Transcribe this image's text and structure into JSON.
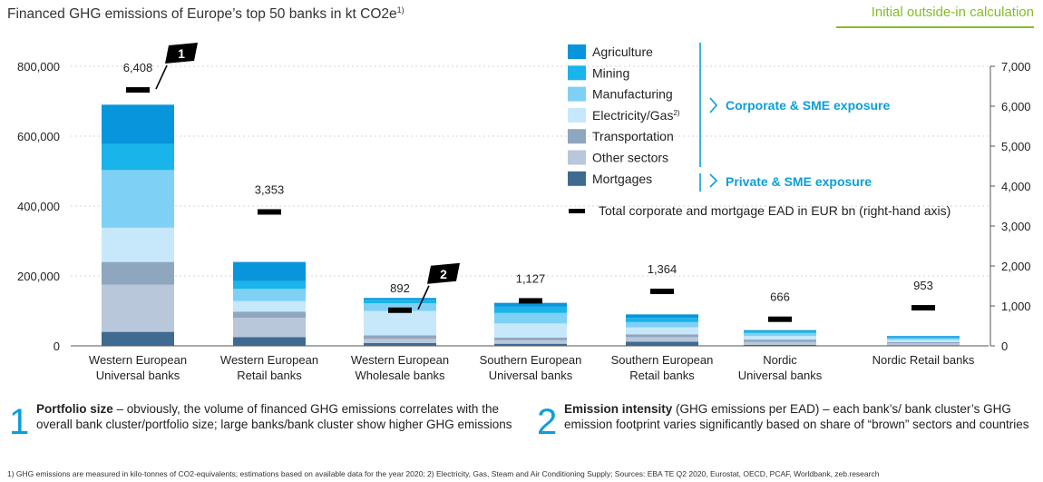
{
  "title": "Financed GHG emissions of Europe’s top 50 banks in kt CO2e",
  "title_sup": "1)",
  "badge": "Initial outside-in calculation",
  "chart_data": {
    "type": "bar",
    "stacked": true,
    "categories": [
      [
        "Western European",
        "Universal banks"
      ],
      [
        "Western European",
        "Retail banks"
      ],
      [
        "Western European",
        "Wholesale banks"
      ],
      [
        "Southern European",
        "Universal banks"
      ],
      [
        "Southern European",
        "Retail banks"
      ],
      [
        "Nordic",
        "Universal banks"
      ],
      [
        "Nordic Retail banks"
      ]
    ],
    "series": [
      {
        "name": "Mortgages",
        "color": "#3f6a92",
        "values": [
          40000,
          25000,
          8000,
          6000,
          12000,
          3000,
          2000
        ]
      },
      {
        "name": "Other sectors",
        "color": "#b8c7da",
        "values": [
          135000,
          55000,
          12000,
          10000,
          13000,
          8000,
          5000
        ]
      },
      {
        "name": "Transportation",
        "color": "#8fa6bf",
        "values": [
          65000,
          18000,
          10000,
          8000,
          8000,
          7000,
          4000
        ]
      },
      {
        "name": "Electricity/Gas",
        "sup": "2)",
        "color": "#c7e8fb",
        "values": [
          98000,
          30000,
          70000,
          40000,
          20000,
          10000,
          6000
        ]
      },
      {
        "name": "Manufacturing",
        "color": "#7fd0f5",
        "values": [
          165000,
          35000,
          22000,
          30000,
          15000,
          9000,
          5000
        ]
      },
      {
        "name": "Mining",
        "color": "#18b4ea",
        "values": [
          75000,
          22000,
          10000,
          18000,
          12000,
          5000,
          4000
        ]
      },
      {
        "name": "Agriculture",
        "color": "#0795dc",
        "values": [
          112000,
          55000,
          5000,
          11000,
          10000,
          3000,
          2000
        ]
      }
    ],
    "ead": {
      "name": "Total corporate and mortgage EAD in EUR bn (right-hand axis)",
      "values": [
        6408,
        3353,
        892,
        1127,
        1364,
        666,
        953
      ],
      "labels": [
        "6,408",
        "3,353",
        "892",
        "1,127",
        "1,364",
        "666",
        "953"
      ]
    },
    "ylim_left": [
      0,
      800000
    ],
    "yticks_left": [
      "0",
      "200,000",
      "400,000",
      "600,000",
      "800,000"
    ],
    "ylim_right": [
      0,
      7000
    ],
    "yticks_right": [
      "0",
      "1,000",
      "2,000",
      "3,000",
      "4,000",
      "5,000",
      "6,000",
      "7,000"
    ],
    "grid": true,
    "legend_position": "top-right",
    "groups": {
      "corporate": "Corporate & SME exposure",
      "private": "Private & SME exposure"
    },
    "flags": [
      {
        "num": "1",
        "bar": 0
      },
      {
        "num": "2",
        "bar": 2
      }
    ]
  },
  "callouts": [
    {
      "num": "1",
      "bold": "Portfolio size",
      "text": " – obviously, the volume of financed GHG emissions correlates with the overall bank cluster/portfolio size; large banks/bank cluster show higher GHG emissions"
    },
    {
      "num": "2",
      "bold": "Emission intensity",
      "text": " (GHG emissions per EAD) – each bank’s/ bank cluster’s GHG emission footprint varies significantly based on share of “brown” sectors and countries"
    }
  ],
  "footnote": "1) GHG emissions are measured in kilo-tonnes of CO2-equivalents; estimations based on available data for the year 2020; 2) Electricity, Gas, Steam and Air Conditioning Supply; Sources: EBA TE Q2 2020, Eurostat, OECD, PCAF, Worldbank, zeb.research"
}
